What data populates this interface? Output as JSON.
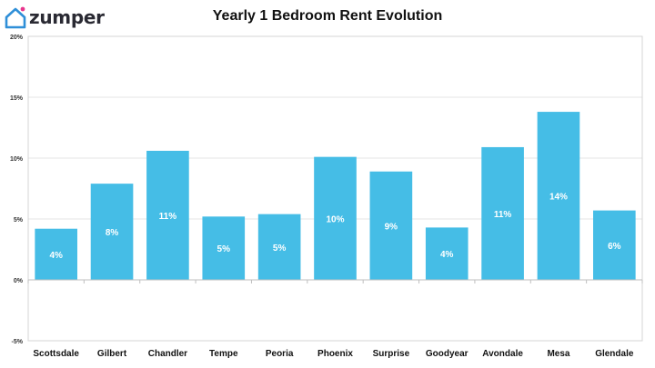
{
  "brand": {
    "name": "zumper",
    "icon": "house-icon",
    "color": "#2f8fd8",
    "dot_color": "#e8358d"
  },
  "chart_data": {
    "type": "bar",
    "title": "Yearly 1 Bedroom Rent Evolution",
    "xlabel": "",
    "ylabel": "",
    "categories": [
      "Scottsdale",
      "Gilbert",
      "Chandler",
      "Tempe",
      "Peoria",
      "Phoenix",
      "Surprise",
      "Goodyear",
      "Avondale",
      "Mesa",
      "Glendale"
    ],
    "values": [
      4.2,
      7.9,
      10.6,
      5.2,
      5.4,
      10.1,
      8.9,
      4.3,
      10.9,
      13.8,
      5.7
    ],
    "data_labels": [
      "4%",
      "8%",
      "11%",
      "5%",
      "5%",
      "10%",
      "9%",
      "4%",
      "11%",
      "14%",
      "6%"
    ],
    "yticks": [
      "-5%",
      "0%",
      "5%",
      "10%",
      "15%",
      "20%"
    ],
    "ytick_values": [
      -5,
      0,
      5,
      10,
      15,
      20
    ],
    "ylim": [
      -5,
      20
    ],
    "grid": true,
    "bar_color": "#45bde6"
  }
}
